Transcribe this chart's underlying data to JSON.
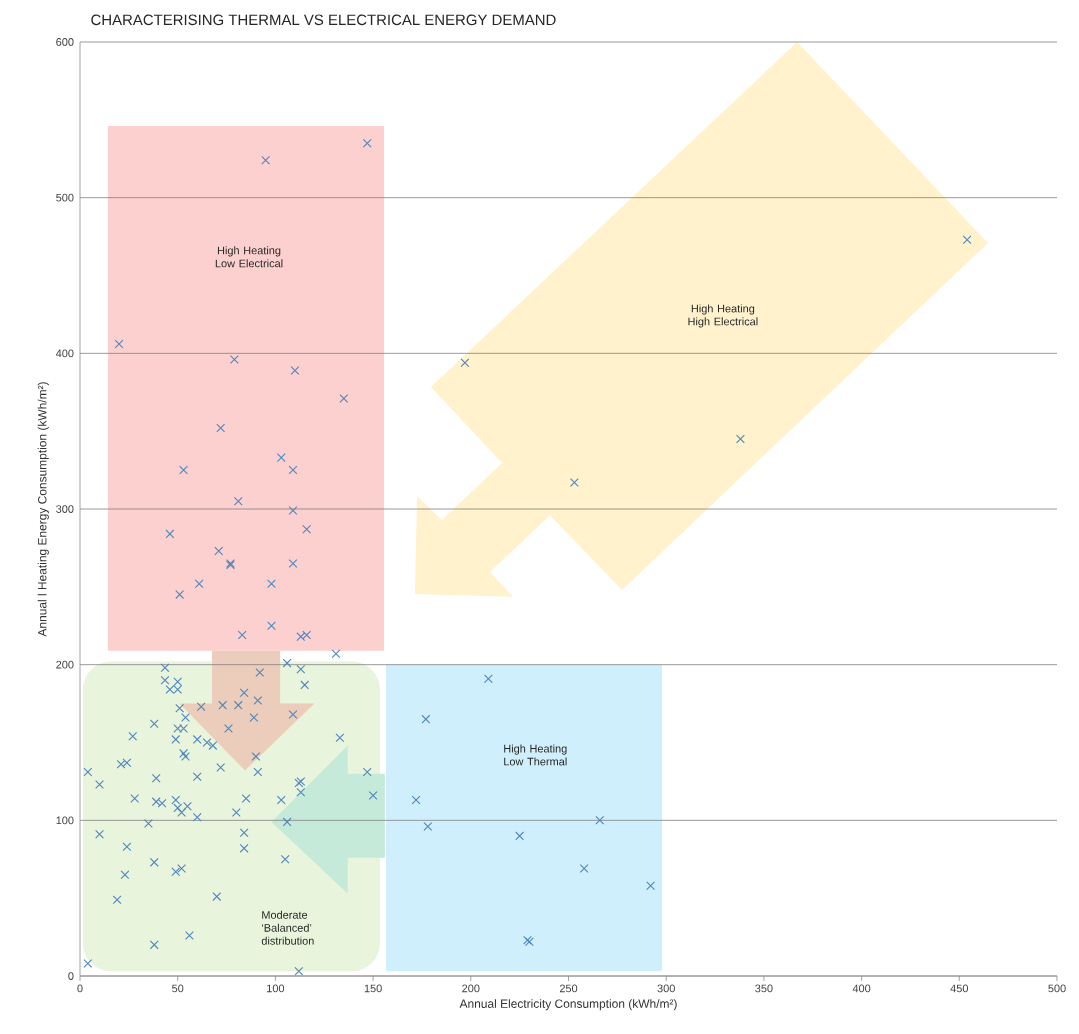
{
  "chart_data": {
    "type": "scatter",
    "title": "CHARACTERISING THERMAL VS ELECTRICAL ENERGY DEMAND",
    "xlabel": "Annual Electricity Consumption (kWh/m²)",
    "ylabel": "Annual l Heating Energy Consumption (kWh/m²)",
    "annotations": [
      "High Heating Low Electrical",
      "High Heating High Electrical",
      "High Heating Low Thermal",
      "Moderate ‘Balanced’ distribution"
    ],
    "xlim": [
      0,
      500
    ],
    "ylim": [
      0,
      600
    ],
    "xticks": [
      0,
      50,
      100,
      150,
      200,
      250,
      300,
      350,
      400,
      450,
      500
    ],
    "yticks": [
      0,
      100,
      200,
      300,
      400,
      500,
      600
    ],
    "grid": "y",
    "marker": "cross",
    "color": "#4f86bd",
    "x": [
      147,
      95,
      20,
      79,
      110,
      135,
      72,
      103,
      109,
      53,
      81,
      109,
      116,
      46,
      71,
      77,
      77,
      109,
      61,
      98,
      51,
      98,
      83,
      113,
      116,
      131,
      43.5,
      43.5,
      50,
      46,
      50,
      51,
      54,
      38,
      50,
      53,
      27,
      49,
      53,
      54,
      60,
      65,
      68,
      4,
      10,
      21,
      24,
      39,
      60,
      72,
      28,
      39,
      42,
      49,
      50,
      52,
      55,
      60,
      35,
      10,
      24,
      38,
      49,
      52,
      23,
      19,
      70,
      38,
      56,
      4,
      112,
      84,
      84,
      85,
      80,
      105,
      106,
      103,
      113,
      113,
      112,
      91,
      90,
      109,
      89,
      76,
      84,
      91,
      92,
      62,
      73,
      81,
      106,
      113,
      115,
      133,
      147,
      150,
      454,
      197,
      338,
      253,
      209,
      177,
      172,
      178,
      225,
      266,
      258,
      292,
      230,
      229
    ],
    "values": [
      535,
      524,
      406,
      396,
      389,
      371,
      352,
      333,
      325,
      325,
      305,
      299,
      287,
      284,
      273,
      265,
      264,
      265,
      252,
      252,
      245,
      225,
      219,
      218,
      219,
      207,
      198,
      190,
      189,
      184,
      184,
      172,
      166,
      162,
      159,
      159,
      154,
      152,
      143,
      141,
      152,
      150,
      148,
      131,
      123,
      136,
      137,
      127,
      128,
      134,
      114,
      112,
      111,
      113,
      108,
      105,
      109,
      102,
      98,
      91,
      83,
      73,
      67,
      69,
      65,
      49,
      51,
      20,
      26,
      8,
      3,
      92,
      82,
      114,
      105,
      75,
      99,
      113,
      125,
      118,
      124,
      131,
      141,
      168,
      166,
      159,
      182,
      177,
      195,
      173,
      174,
      174,
      201,
      197,
      187,
      153,
      131,
      116,
      473,
      394,
      345,
      317,
      191,
      165,
      113,
      96,
      90,
      100,
      69,
      58,
      22,
      23
    ]
  }
}
